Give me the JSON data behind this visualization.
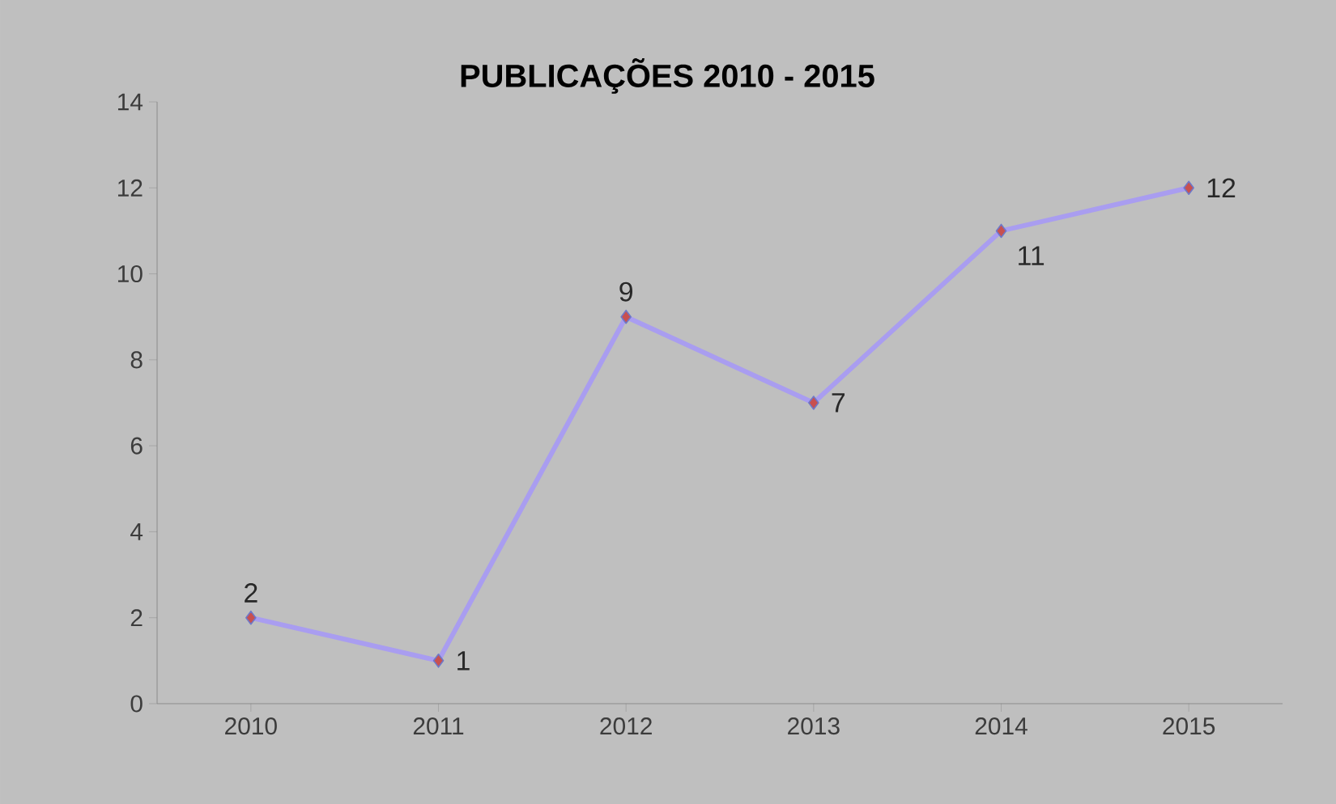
{
  "chart_data": {
    "type": "line",
    "title": "PUBLICAÇÕES 2010 - 2015",
    "categories": [
      "2010",
      "2011",
      "2012",
      "2013",
      "2014",
      "2015"
    ],
    "series": [
      {
        "color": "#a99df0",
        "values": [
          2,
          1,
          9,
          7,
          11,
          12
        ]
      }
    ],
    "ylim": [
      0,
      14
    ],
    "yticks": [
      0,
      2,
      4,
      6,
      8,
      10,
      12,
      14
    ],
    "data_labels": true,
    "marker": "diamond",
    "line_style": "solid"
  }
}
